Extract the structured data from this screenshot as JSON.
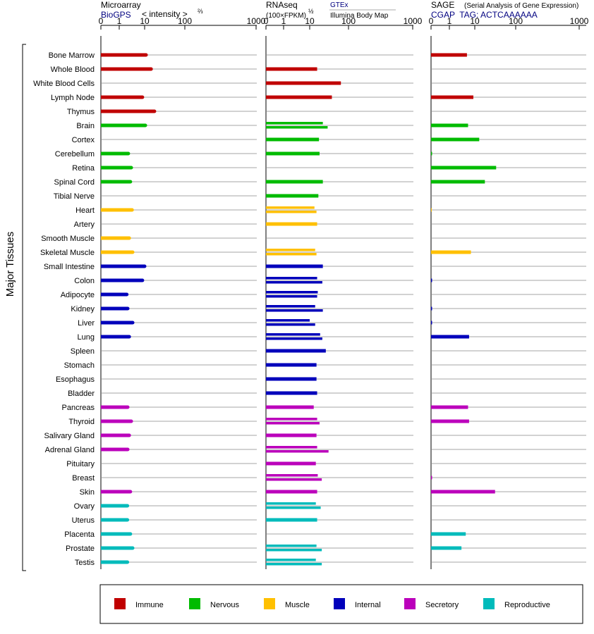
{
  "headers": {
    "microarray": {
      "title": "Microarray",
      "source": "BioGPS",
      "unit": "< intensity >",
      "exp": "⅔"
    },
    "rnaseq": {
      "title": "RNAseq",
      "unit": "(100×FPKM)",
      "exp": "½",
      "source1": "GTEx",
      "source2": "Illumina Body Map"
    },
    "sage": {
      "title": "SAGE",
      "subtitle": "(Serial Analysis of Gene Expression)",
      "tag": "CGAP  TAG: ACTCAAAAAA"
    }
  },
  "y_axis_title": "Major Tissues",
  "colors": {
    "Immune": "#c00000",
    "Nervous": "#00bb00",
    "Muscle": "#ffc000",
    "Internal": "#0000bb",
    "Secretory": "#bb00bb",
    "Reproductive": "#00bbbb",
    "gridline": "#888888",
    "panel_axis": "#000000"
  },
  "legend": {
    "items": [
      {
        "label": "Immune",
        "color": "#c00000"
      },
      {
        "label": "Nervous",
        "color": "#00bb00"
      },
      {
        "label": "Muscle",
        "color": "#ffc000"
      },
      {
        "label": "Internal",
        "color": "#0000bb"
      },
      {
        "label": "Secretory",
        "color": "#bb00bb"
      },
      {
        "label": "Reproductive",
        "color": "#00bbbb"
      }
    ]
  },
  "chart_data": [
    {
      "type": "bar",
      "panel": "Microarray",
      "scale": "x^(2/3)",
      "xticks": [
        0,
        1,
        10,
        100,
        1000
      ],
      "xlim": [
        0,
        1000
      ],
      "categories": [
        "Bone Marrow",
        "Whole Blood",
        "White Blood Cells",
        "Lymph Node",
        "Thymus",
        "Brain",
        "Cortex",
        "Cerebellum",
        "Retina",
        "Spinal Cord",
        "Tibial Nerve",
        "Heart",
        "Artery",
        "Smooth Muscle",
        "Skeletal Muscle",
        "Small Intestine",
        "Colon",
        "Adipocyte",
        "Kidney",
        "Liver",
        "Lung",
        "Spleen",
        "Stomach",
        "Esophagus",
        "Bladder",
        "Pancreas",
        "Thyroid",
        "Salivary Gland",
        "Adrenal Gland",
        "Pituitary",
        "Breast",
        "Skin",
        "Ovary",
        "Uterus",
        "Placenta",
        "Prostate",
        "Testis"
      ],
      "groups": [
        "Immune",
        "Immune",
        "Immune",
        "Immune",
        "Immune",
        "Nervous",
        "Nervous",
        "Nervous",
        "Nervous",
        "Nervous",
        "Nervous",
        "Muscle",
        "Muscle",
        "Muscle",
        "Muscle",
        "Internal",
        "Internal",
        "Internal",
        "Internal",
        "Internal",
        "Internal",
        "Internal",
        "Internal",
        "Internal",
        "Internal",
        "Secretory",
        "Secretory",
        "Secretory",
        "Secretory",
        "Secretory",
        "Secretory",
        "Secretory",
        "Reproductive",
        "Reproductive",
        "Reproductive",
        "Reproductive",
        "Reproductive"
      ],
      "values": [
        [
          12
        ],
        [
          20
        ],
        [],
        [
          9
        ],
        [
          26
        ],
        [
          11
        ],
        [],
        [
          3.5
        ],
        [
          4.5
        ],
        [
          4.2
        ],
        [],
        [
          4.8
        ],
        [],
        [
          3.8
        ],
        [
          5
        ],
        [
          10
        ],
        [
          9
        ],
        [
          3
        ],
        [
          3.3
        ],
        [
          5
        ],
        [
          3.8
        ],
        [],
        [],
        [],
        [],
        [
          3.3
        ],
        [
          4.5
        ],
        [
          3.8
        ],
        [
          3.3
        ],
        [],
        [],
        [
          4.2
        ],
        [
          3.2
        ],
        [
          3.2
        ],
        [
          4.2
        ],
        [
          5
        ],
        [
          3.2
        ]
      ]
    },
    {
      "type": "bar",
      "panel": "RNAseq",
      "scale": "x^(1/2)",
      "xticks": [
        0,
        1,
        10,
        100,
        1000
      ],
      "xlim": [
        0,
        1000
      ],
      "categories": [
        "Bone Marrow",
        "Whole Blood",
        "White Blood Cells",
        "Lymph Node",
        "Thymus",
        "Brain",
        "Cortex",
        "Cerebellum",
        "Retina",
        "Spinal Cord",
        "Tibial Nerve",
        "Heart",
        "Artery",
        "Smooth Muscle",
        "Skeletal Muscle",
        "Small Intestine",
        "Colon",
        "Adipocyte",
        "Kidney",
        "Liver",
        "Lung",
        "Spleen",
        "Stomach",
        "Esophagus",
        "Bladder",
        "Pancreas",
        "Thyroid",
        "Salivary Gland",
        "Adrenal Gland",
        "Pituitary",
        "Breast",
        "Skin",
        "Ovary",
        "Uterus",
        "Placenta",
        "Prostate",
        "Testis"
      ],
      "values": [
        [],
        [
          20
        ],
        [
          75
        ],
        [
          50
        ],
        [],
        [
          30,
          40
        ],
        [
          23
        ],
        [
          24
        ],
        [],
        [
          30
        ],
        [
          22
        ],
        [
          16,
          19
        ],
        [
          20
        ],
        [],
        [
          17,
          19
        ],
        [
          30
        ],
        [
          20,
          29
        ],
        [
          21,
          20
        ],
        [
          17,
          30
        ],
        [
          10,
          17
        ],
        [
          25,
          29
        ],
        [
          36
        ],
        [
          19
        ],
        [
          19
        ],
        [
          20
        ],
        [
          15
        ],
        [
          20,
          24
        ],
        [
          19
        ],
        [
          20,
          42
        ],
        [
          18
        ],
        [
          21,
          28
        ],
        [
          20
        ],
        [
          18,
          26
        ],
        [
          20
        ],
        [],
        [
          19,
          28
        ],
        [
          18,
          28
        ]
      ]
    },
    {
      "type": "bar",
      "panel": "SAGE",
      "scale": "log",
      "xticks": [
        0,
        1,
        10,
        100,
        1000
      ],
      "xlim": [
        0,
        1000
      ],
      "categories": [
        "Bone Marrow",
        "Whole Blood",
        "White Blood Cells",
        "Lymph Node",
        "Thymus",
        "Brain",
        "Cortex",
        "Cerebellum",
        "Retina",
        "Spinal Cord",
        "Tibial Nerve",
        "Heart",
        "Artery",
        "Smooth Muscle",
        "Skeletal Muscle",
        "Small Intestine",
        "Colon",
        "Adipocyte",
        "Kidney",
        "Liver",
        "Lung",
        "Spleen",
        "Stomach",
        "Esophagus",
        "Bladder",
        "Pancreas",
        "Thyroid",
        "Salivary Gland",
        "Adrenal Gland",
        "Pituitary",
        "Breast",
        "Skin",
        "Ovary",
        "Uterus",
        "Placenta",
        "Prostate",
        "Testis"
      ],
      "values": [
        [
          5.5
        ],
        [],
        [],
        [
          9
        ],
        [],
        [
          6
        ],
        [
          13
        ],
        [
          0.04
        ],
        [
          34
        ],
        [
          18
        ],
        [],
        [
          0.02
        ],
        [],
        [],
        [
          7.5
        ],
        [],
        [
          0.04
        ],
        [],
        [
          0.04
        ],
        [
          0.04
        ],
        [
          6.5
        ],
        [],
        [],
        [],
        [],
        [
          6
        ],
        [
          6.5
        ],
        [],
        [],
        [],
        [
          0.04
        ],
        [
          32
        ],
        [],
        [],
        [
          5
        ],
        [
          3.5
        ],
        []
      ]
    }
  ]
}
